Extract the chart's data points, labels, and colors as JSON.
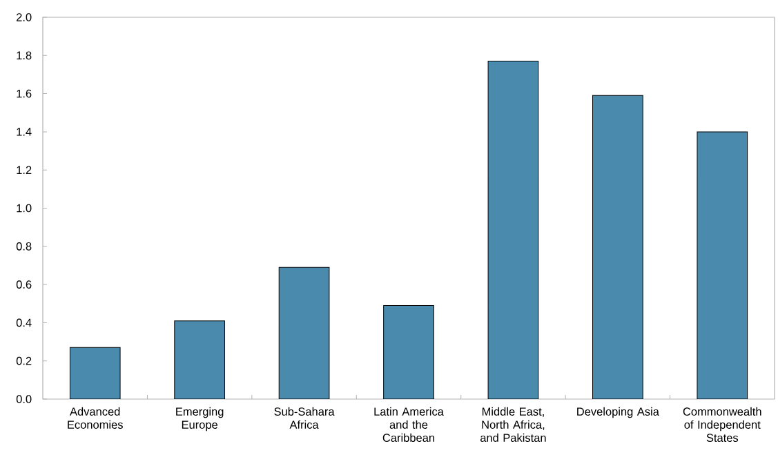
{
  "chart_data": {
    "type": "bar",
    "categories": [
      "Advanced Economies",
      "Emerging Europe",
      "Sub-Sahara Africa",
      "Latin America and the Caribbean",
      "Middle East, North Africa, and Pakistan",
      "Developing Asia",
      "Commonwealth of Independent States"
    ],
    "values": [
      0.27,
      0.41,
      0.69,
      0.49,
      1.77,
      1.59,
      1.4
    ],
    "color": "#4a8aad",
    "ylim": [
      0,
      2.0
    ],
    "yticks": [
      {
        "value": 0,
        "label": "0.0"
      },
      0.2,
      0.4,
      0.6,
      0.8,
      {
        "value": 1.0,
        "label": "1.0"
      },
      1.2,
      1.4,
      1.6,
      1.8,
      {
        "value": 2.0,
        "label": "2.0"
      }
    ]
  }
}
